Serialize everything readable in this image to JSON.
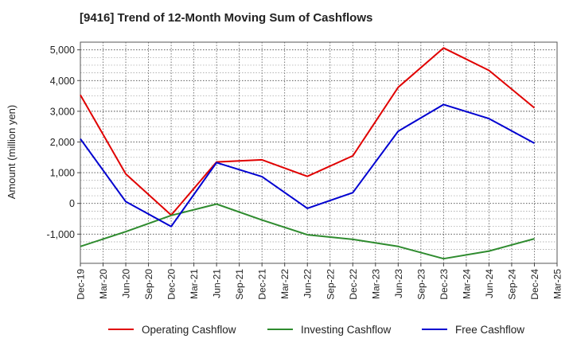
{
  "chart_data": {
    "type": "line",
    "title": "[9416]  Trend of 12-Month Moving Sum of Cashflows",
    "xlabel": "",
    "ylabel": "Amount (million yen)",
    "categories": [
      "Dec-19",
      "Mar-20",
      "Jun-20",
      "Sep-20",
      "Dec-20",
      "Mar-21",
      "Jun-21",
      "Sep-21",
      "Dec-21",
      "Mar-22",
      "Jun-22",
      "Sep-22",
      "Dec-22",
      "Mar-23",
      "Jun-23",
      "Sep-23",
      "Dec-23",
      "Mar-24",
      "Jun-24",
      "Sep-24",
      "Dec-24",
      "Mar-25"
    ],
    "yticks": [
      -1000,
      0,
      1000,
      2000,
      3000,
      4000,
      5000
    ],
    "ytick_labels": [
      "-1,000",
      "0",
      "1,000",
      "2,000",
      "3,000",
      "4,000",
      "5,000"
    ],
    "ylim": [
      -1950,
      5250
    ],
    "grid": true,
    "legend_position": "bottom",
    "series": [
      {
        "name": "Operating Cashflow",
        "color": "#e00000",
        "values": [
          3530,
          null,
          960,
          null,
          -380,
          null,
          1350,
          null,
          1420,
          null,
          880,
          null,
          1550,
          null,
          3780,
          null,
          5060,
          null,
          4330,
          null,
          3110,
          null
        ]
      },
      {
        "name": "Investing Cashflow",
        "color": "#2e8b2e",
        "values": [
          -1400,
          null,
          -920,
          null,
          -390,
          null,
          -20,
          null,
          -540,
          null,
          -1020,
          null,
          -1170,
          null,
          -1400,
          null,
          -1800,
          null,
          -1550,
          null,
          -1150,
          null
        ]
      },
      {
        "name": "Free Cashflow",
        "color": "#0000d0",
        "values": [
          2100,
          null,
          60,
          null,
          -750,
          null,
          1330,
          null,
          870,
          null,
          -160,
          null,
          350,
          null,
          2350,
          null,
          3220,
          null,
          2760,
          null,
          1960,
          null
        ]
      }
    ]
  }
}
